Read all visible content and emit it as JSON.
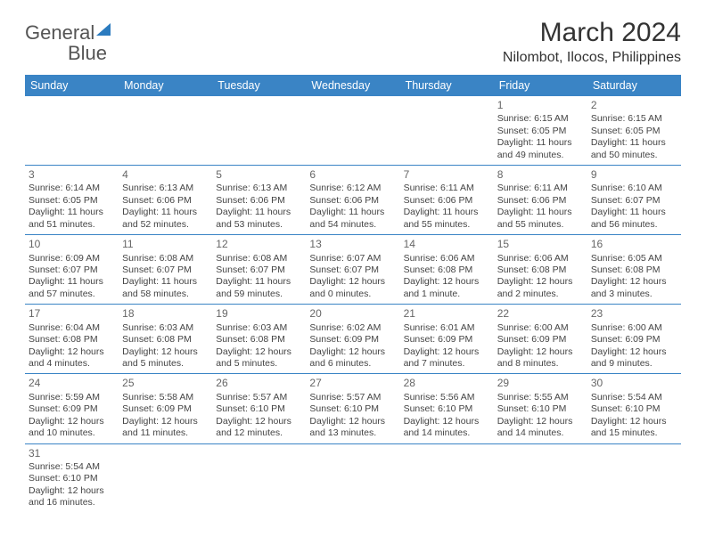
{
  "brand": {
    "part1": "General",
    "part2": "Blue"
  },
  "title": "March 2024",
  "location": "Nilombot, Ilocos, Philippines",
  "colors": {
    "header_bg": "#3a84c5",
    "header_fg": "#ffffff",
    "row_border": "#3a84c5",
    "brand_blue": "#2b7bbf",
    "text": "#333333",
    "cell_text": "#444444"
  },
  "day_headers": [
    "Sunday",
    "Monday",
    "Tuesday",
    "Wednesday",
    "Thursday",
    "Friday",
    "Saturday"
  ],
  "weeks": [
    [
      null,
      null,
      null,
      null,
      null,
      {
        "d": "1",
        "sr": "6:15 AM",
        "ss": "6:05 PM",
        "dl": "11 hours and 49 minutes."
      },
      {
        "d": "2",
        "sr": "6:15 AM",
        "ss": "6:05 PM",
        "dl": "11 hours and 50 minutes."
      }
    ],
    [
      {
        "d": "3",
        "sr": "6:14 AM",
        "ss": "6:05 PM",
        "dl": "11 hours and 51 minutes."
      },
      {
        "d": "4",
        "sr": "6:13 AM",
        "ss": "6:06 PM",
        "dl": "11 hours and 52 minutes."
      },
      {
        "d": "5",
        "sr": "6:13 AM",
        "ss": "6:06 PM",
        "dl": "11 hours and 53 minutes."
      },
      {
        "d": "6",
        "sr": "6:12 AM",
        "ss": "6:06 PM",
        "dl": "11 hours and 54 minutes."
      },
      {
        "d": "7",
        "sr": "6:11 AM",
        "ss": "6:06 PM",
        "dl": "11 hours and 55 minutes."
      },
      {
        "d": "8",
        "sr": "6:11 AM",
        "ss": "6:06 PM",
        "dl": "11 hours and 55 minutes."
      },
      {
        "d": "9",
        "sr": "6:10 AM",
        "ss": "6:07 PM",
        "dl": "11 hours and 56 minutes."
      }
    ],
    [
      {
        "d": "10",
        "sr": "6:09 AM",
        "ss": "6:07 PM",
        "dl": "11 hours and 57 minutes."
      },
      {
        "d": "11",
        "sr": "6:08 AM",
        "ss": "6:07 PM",
        "dl": "11 hours and 58 minutes."
      },
      {
        "d": "12",
        "sr": "6:08 AM",
        "ss": "6:07 PM",
        "dl": "11 hours and 59 minutes."
      },
      {
        "d": "13",
        "sr": "6:07 AM",
        "ss": "6:07 PM",
        "dl": "12 hours and 0 minutes."
      },
      {
        "d": "14",
        "sr": "6:06 AM",
        "ss": "6:08 PM",
        "dl": "12 hours and 1 minute."
      },
      {
        "d": "15",
        "sr": "6:06 AM",
        "ss": "6:08 PM",
        "dl": "12 hours and 2 minutes."
      },
      {
        "d": "16",
        "sr": "6:05 AM",
        "ss": "6:08 PM",
        "dl": "12 hours and 3 minutes."
      }
    ],
    [
      {
        "d": "17",
        "sr": "6:04 AM",
        "ss": "6:08 PM",
        "dl": "12 hours and 4 minutes."
      },
      {
        "d": "18",
        "sr": "6:03 AM",
        "ss": "6:08 PM",
        "dl": "12 hours and 5 minutes."
      },
      {
        "d": "19",
        "sr": "6:03 AM",
        "ss": "6:08 PM",
        "dl": "12 hours and 5 minutes."
      },
      {
        "d": "20",
        "sr": "6:02 AM",
        "ss": "6:09 PM",
        "dl": "12 hours and 6 minutes."
      },
      {
        "d": "21",
        "sr": "6:01 AM",
        "ss": "6:09 PM",
        "dl": "12 hours and 7 minutes."
      },
      {
        "d": "22",
        "sr": "6:00 AM",
        "ss": "6:09 PM",
        "dl": "12 hours and 8 minutes."
      },
      {
        "d": "23",
        "sr": "6:00 AM",
        "ss": "6:09 PM",
        "dl": "12 hours and 9 minutes."
      }
    ],
    [
      {
        "d": "24",
        "sr": "5:59 AM",
        "ss": "6:09 PM",
        "dl": "12 hours and 10 minutes."
      },
      {
        "d": "25",
        "sr": "5:58 AM",
        "ss": "6:09 PM",
        "dl": "12 hours and 11 minutes."
      },
      {
        "d": "26",
        "sr": "5:57 AM",
        "ss": "6:10 PM",
        "dl": "12 hours and 12 minutes."
      },
      {
        "d": "27",
        "sr": "5:57 AM",
        "ss": "6:10 PM",
        "dl": "12 hours and 13 minutes."
      },
      {
        "d": "28",
        "sr": "5:56 AM",
        "ss": "6:10 PM",
        "dl": "12 hours and 14 minutes."
      },
      {
        "d": "29",
        "sr": "5:55 AM",
        "ss": "6:10 PM",
        "dl": "12 hours and 14 minutes."
      },
      {
        "d": "30",
        "sr": "5:54 AM",
        "ss": "6:10 PM",
        "dl": "12 hours and 15 minutes."
      }
    ],
    [
      {
        "d": "31",
        "sr": "5:54 AM",
        "ss": "6:10 PM",
        "dl": "12 hours and 16 minutes."
      },
      null,
      null,
      null,
      null,
      null,
      null
    ]
  ],
  "labels": {
    "sunrise": "Sunrise:",
    "sunset": "Sunset:",
    "daylight": "Daylight:"
  }
}
